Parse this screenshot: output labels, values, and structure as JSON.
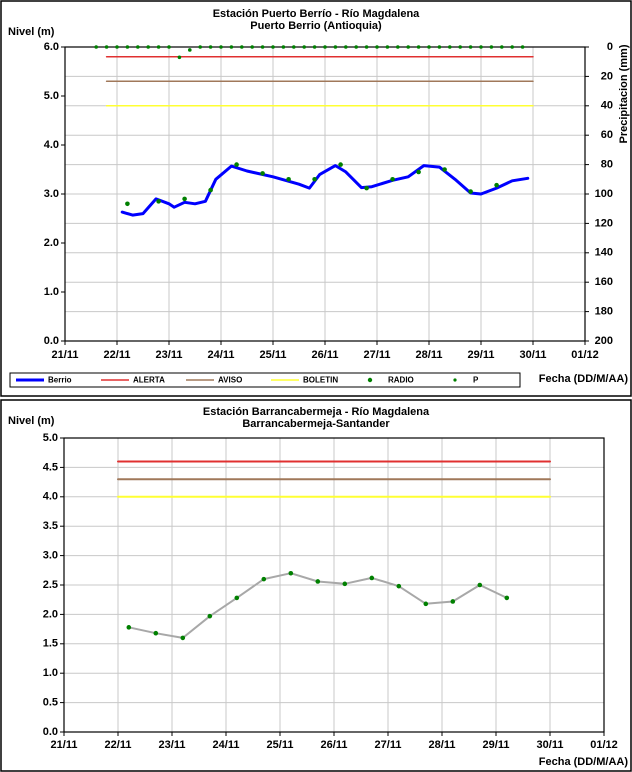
{
  "chart_data": [
    {
      "type": "line",
      "title": "Estación Puerto Berrío - Río Magdalena",
      "subtitle": "Puerto Berrio (Antioquia)",
      "ylabel": "Nivel (m)",
      "y2label": "Precipitacion (mm)",
      "xlabel": "Fecha (DD/M/AA)",
      "xlim": [
        21,
        31
      ],
      "xticks": [
        {
          "value": 21,
          "label": "21/11"
        },
        {
          "value": 22,
          "label": "22/11"
        },
        {
          "value": 23,
          "label": "23/11"
        },
        {
          "value": 24,
          "label": "24/11"
        },
        {
          "value": 25,
          "label": "25/11"
        },
        {
          "value": 26,
          "label": "26/11"
        },
        {
          "value": 27,
          "label": "27/11"
        },
        {
          "value": 28,
          "label": "28/11"
        },
        {
          "value": 29,
          "label": "29/11"
        },
        {
          "value": 30,
          "label": "30/11"
        },
        {
          "value": 31,
          "label": "01/12"
        }
      ],
      "ylim": [
        0,
        6
      ],
      "yticks": [
        {
          "value": 0,
          "label": "0.0"
        },
        {
          "value": 1,
          "label": "1.0"
        },
        {
          "value": 2,
          "label": "2.0"
        },
        {
          "value": 3,
          "label": "3.0"
        },
        {
          "value": 4,
          "label": "4.0"
        },
        {
          "value": 5,
          "label": "5.0"
        },
        {
          "value": 6,
          "label": "6.0"
        }
      ],
      "y2lim": [
        200,
        0
      ],
      "y2ticks": [
        0,
        20,
        40,
        60,
        80,
        100,
        120,
        140,
        160,
        180,
        200
      ],
      "grid": true,
      "legend": "bottom",
      "series": [
        {
          "name": "Berrio",
          "color": "#0000ff",
          "kind": "line",
          "width": 3,
          "x": [
            22.1,
            22.3,
            22.5,
            22.75,
            23.0,
            23.1,
            23.3,
            23.5,
            23.7,
            23.9,
            24.2,
            24.5,
            25.0,
            25.5,
            25.7,
            25.9,
            26.2,
            26.4,
            26.7,
            26.9,
            27.3,
            27.6,
            27.9,
            28.2,
            28.5,
            28.8,
            29.0,
            29.3,
            29.6,
            29.9
          ],
          "values": [
            2.63,
            2.57,
            2.6,
            2.9,
            2.8,
            2.73,
            2.83,
            2.8,
            2.85,
            3.3,
            3.57,
            3.47,
            3.35,
            3.2,
            3.12,
            3.4,
            3.58,
            3.45,
            3.13,
            3.15,
            3.28,
            3.35,
            3.58,
            3.55,
            3.3,
            3.02,
            3.0,
            3.12,
            3.27,
            3.32
          ]
        },
        {
          "name": "ALERTA",
          "color": "#e03030",
          "kind": "line",
          "width": 1.5,
          "x": [
            21.8,
            30.0
          ],
          "values": [
            5.8,
            5.8
          ]
        },
        {
          "name": "AVISO",
          "color": "#a0785a",
          "kind": "line",
          "width": 1.5,
          "x": [
            21.8,
            30.0
          ],
          "values": [
            5.3,
            5.3
          ]
        },
        {
          "name": "BOLETIN",
          "color": "#ffff33",
          "kind": "line",
          "width": 1.5,
          "x": [
            21.8,
            30.0
          ],
          "values": [
            4.8,
            4.8
          ]
        },
        {
          "name": "RADIO",
          "color": "#008000",
          "kind": "markers",
          "x": [
            22.2,
            22.8,
            23.3,
            23.8,
            24.3,
            24.8,
            25.3,
            25.8,
            26.3,
            26.8,
            27.3,
            27.8,
            28.3,
            28.8,
            29.3
          ],
          "values": [
            2.8,
            2.85,
            2.9,
            3.08,
            3.6,
            3.42,
            3.3,
            3.3,
            3.6,
            3.12,
            3.3,
            3.45,
            3.5,
            3.05,
            3.18
          ]
        },
        {
          "name": "P",
          "color": "#008000",
          "kind": "markers",
          "axis": "y2",
          "x": [
            21.6,
            21.8,
            22.0,
            22.2,
            22.4,
            22.6,
            22.8,
            23.0,
            23.2,
            23.4,
            23.6,
            23.8,
            24.0,
            24.2,
            24.4,
            24.6,
            24.8,
            25.0,
            25.2,
            25.4,
            25.6,
            25.8,
            26.0,
            26.2,
            26.4,
            26.6,
            26.8,
            27.0,
            27.2,
            27.4,
            27.6,
            27.8,
            28.0,
            28.2,
            28.4,
            28.6,
            28.8,
            29.0,
            29.2,
            29.4,
            29.6,
            29.8
          ],
          "values": [
            0,
            0,
            0,
            0,
            0,
            0,
            0,
            0,
            7,
            2,
            0,
            0,
            0,
            0,
            0,
            0,
            0,
            0,
            0,
            0,
            0,
            0,
            0,
            0,
            0,
            0,
            0,
            0,
            0,
            0,
            0,
            0,
            0,
            0,
            0,
            0,
            0,
            0,
            0,
            0,
            0,
            0
          ]
        }
      ]
    },
    {
      "type": "line",
      "title": "Estación Barrancabermeja - Río Magdalena",
      "subtitle": "Barrancabermeja-Santander",
      "ylabel": "Nivel (m)",
      "xlabel": "Fecha (DD/M/AA)",
      "xlim": [
        21,
        31
      ],
      "xticks": [
        {
          "value": 21,
          "label": "21/11"
        },
        {
          "value": 22,
          "label": "22/11"
        },
        {
          "value": 23,
          "label": "23/11"
        },
        {
          "value": 24,
          "label": "24/11"
        },
        {
          "value": 25,
          "label": "25/11"
        },
        {
          "value": 26,
          "label": "26/11"
        },
        {
          "value": 27,
          "label": "27/11"
        },
        {
          "value": 28,
          "label": "28/11"
        },
        {
          "value": 29,
          "label": "29/11"
        },
        {
          "value": 30,
          "label": "30/11"
        },
        {
          "value": 31,
          "label": "01/12"
        }
      ],
      "ylim": [
        0,
        5
      ],
      "yticks": [
        {
          "value": 0,
          "label": "0.0"
        },
        {
          "value": 0.5,
          "label": "0.5"
        },
        {
          "value": 1,
          "label": "1.0"
        },
        {
          "value": 1.5,
          "label": "1.5"
        },
        {
          "value": 2,
          "label": "2.0"
        },
        {
          "value": 2.5,
          "label": "2.5"
        },
        {
          "value": 3,
          "label": "3.0"
        },
        {
          "value": 3.5,
          "label": "3.5"
        },
        {
          "value": 4,
          "label": "4.0"
        },
        {
          "value": 4.5,
          "label": "4.5"
        },
        {
          "value": 5,
          "label": "5.0"
        }
      ],
      "grid": true,
      "series": [
        {
          "color": "#e03030",
          "kind": "line",
          "width": 2,
          "x": [
            22.0,
            30.0
          ],
          "values": [
            4.6,
            4.6
          ]
        },
        {
          "color": "#a0785a",
          "kind": "line",
          "width": 2,
          "x": [
            22.0,
            30.0
          ],
          "values": [
            4.3,
            4.3
          ]
        },
        {
          "color": "#ffff33",
          "kind": "line",
          "width": 2,
          "x": [
            22.0,
            30.0
          ],
          "values": [
            4.0,
            4.0
          ]
        },
        {
          "color": "#a8a8a8",
          "marker_color": "#008000",
          "kind": "line-markers",
          "width": 2,
          "x": [
            22.2,
            22.7,
            23.2,
            23.7,
            24.2,
            24.7,
            25.2,
            25.7,
            26.2,
            26.7,
            27.2,
            27.7,
            28.2,
            28.7,
            29.2
          ],
          "values": [
            1.78,
            1.68,
            1.6,
            1.97,
            2.28,
            2.6,
            2.7,
            2.56,
            2.52,
            2.62,
            2.48,
            2.18,
            2.22,
            2.5,
            2.28
          ]
        }
      ]
    }
  ]
}
